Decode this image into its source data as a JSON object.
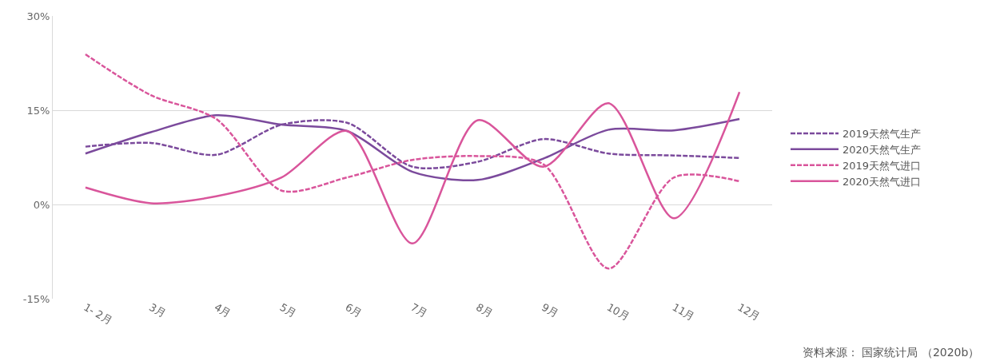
{
  "chart_data": {
    "type": "line",
    "categories": [
      "1- 2月",
      "3月",
      "4月",
      "5月",
      "6月",
      "7月",
      "8月",
      "9月",
      "10月",
      "11月",
      "12月"
    ],
    "series": [
      {
        "name": "2019天然气生产",
        "color": "#7b4a9c",
        "line_style": "dashed",
        "values": [
          9.2,
          9.8,
          7.9,
          12.7,
          13.0,
          6.0,
          6.8,
          10.4,
          8.1,
          7.8,
          7.4
        ]
      },
      {
        "name": "2020天然气生产",
        "color": "#7b4a9c",
        "line_style": "solid",
        "values": [
          8.1,
          11.5,
          14.2,
          12.7,
          11.7,
          5.2,
          3.9,
          7.3,
          11.9,
          11.8,
          13.6
        ]
      },
      {
        "name": "2019天然气进口",
        "color": "#d9559b",
        "line_style": "dashed",
        "values": [
          23.9,
          17.4,
          13.6,
          2.2,
          4.3,
          7.1,
          7.7,
          6.4,
          -10.2,
          4.3,
          3.7
        ]
      },
      {
        "name": "2020天然气进口",
        "color": "#d9559b",
        "line_style": "solid",
        "values": [
          2.7,
          0.2,
          1.3,
          4.3,
          11.7,
          -6.2,
          13.4,
          6.0,
          16.1,
          -2.2,
          17.9
        ]
      }
    ],
    "ylim": [
      -15,
      30
    ],
    "yticks": [
      {
        "value": -15,
        "label": "-15%"
      },
      {
        "value": 0,
        "label": "0%"
      },
      {
        "value": 15,
        "label": "15%"
      },
      {
        "value": 30,
        "label": "30%"
      }
    ],
    "grid": "y",
    "legend": "right",
    "marker": "none",
    "annotations": [
      "资料来源： 国家统计局 （2020b）"
    ]
  }
}
